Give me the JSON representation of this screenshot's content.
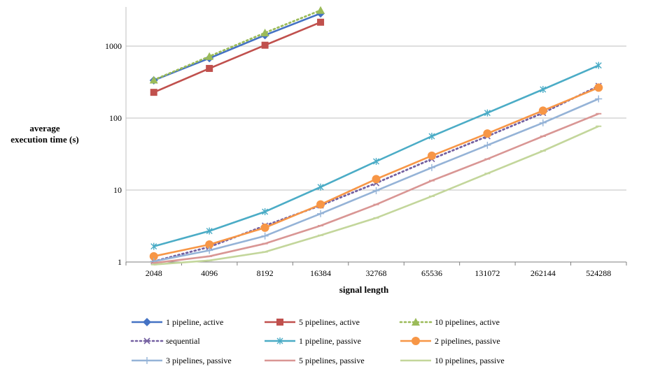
{
  "chart_data": {
    "type": "line",
    "title": "",
    "xlabel": "signal length",
    "ylabel_lines": [
      "average",
      "execution time (s)"
    ],
    "y_scale": "log",
    "ylim": [
      1,
      3500
    ],
    "y_ticks": [
      "1",
      "10",
      "100",
      "1000"
    ],
    "y_tick_values": [
      1,
      10,
      100,
      1000
    ],
    "categories": [
      "2048",
      "4096",
      "8192",
      "16384",
      "32768",
      "65536",
      "131072",
      "262144",
      "524288"
    ],
    "grid": "horizontal major",
    "legend_position": "bottom",
    "series": [
      {
        "name": "1 pipeline, active",
        "color": "#4472C4",
        "marker": "diamond",
        "dash": false,
        "values": [
          335,
          680,
          1420,
          2850,
          null,
          null,
          null,
          null,
          null
        ]
      },
      {
        "name": "5 pipelines, active",
        "color": "#C0504D",
        "marker": "square",
        "dash": false,
        "values": [
          228,
          490,
          1030,
          2150,
          null,
          null,
          null,
          null,
          null
        ]
      },
      {
        "name": "10 pipelines, active",
        "color": "#9BBB59",
        "marker": "triangle",
        "dash": true,
        "values": [
          338,
          720,
          1530,
          3150,
          null,
          null,
          null,
          null,
          null
        ]
      },
      {
        "name": "sequential",
        "color": "#7460A1",
        "marker": "x",
        "dash": true,
        "values": [
          1.02,
          1.62,
          3.2,
          6.1,
          12.5,
          27,
          56,
          118,
          280
        ]
      },
      {
        "name": "1 pipeline, passive",
        "color": "#4BACC6",
        "marker": "star",
        "dash": false,
        "values": [
          1.65,
          2.7,
          5.0,
          11,
          25,
          56,
          118,
          250,
          540
        ]
      },
      {
        "name": "2 pipelines, passive",
        "color": "#F79646",
        "marker": "circle",
        "dash": false,
        "values": [
          1.2,
          1.75,
          3.0,
          6.3,
          14.2,
          30,
          61,
          127,
          265
        ]
      },
      {
        "name": "3 pipelines, passive",
        "color": "#95B3D7",
        "marker": "plus",
        "dash": false,
        "values": [
          1.02,
          1.45,
          2.3,
          4.7,
          9.8,
          20.5,
          42,
          86,
          185
        ]
      },
      {
        "name": "5 pipelines, passive",
        "color": "#D99694",
        "marker": "dash",
        "dash": false,
        "values": [
          0.97,
          1.2,
          1.8,
          3.2,
          6.3,
          13.5,
          27,
          56,
          115
        ]
      },
      {
        "name": "10 pipelines, passive",
        "color": "#C3D69B",
        "marker": "dash",
        "dash": false,
        "values": [
          0.92,
          1.05,
          1.38,
          2.35,
          4.1,
          8.2,
          17,
          35,
          77
        ]
      }
    ]
  }
}
